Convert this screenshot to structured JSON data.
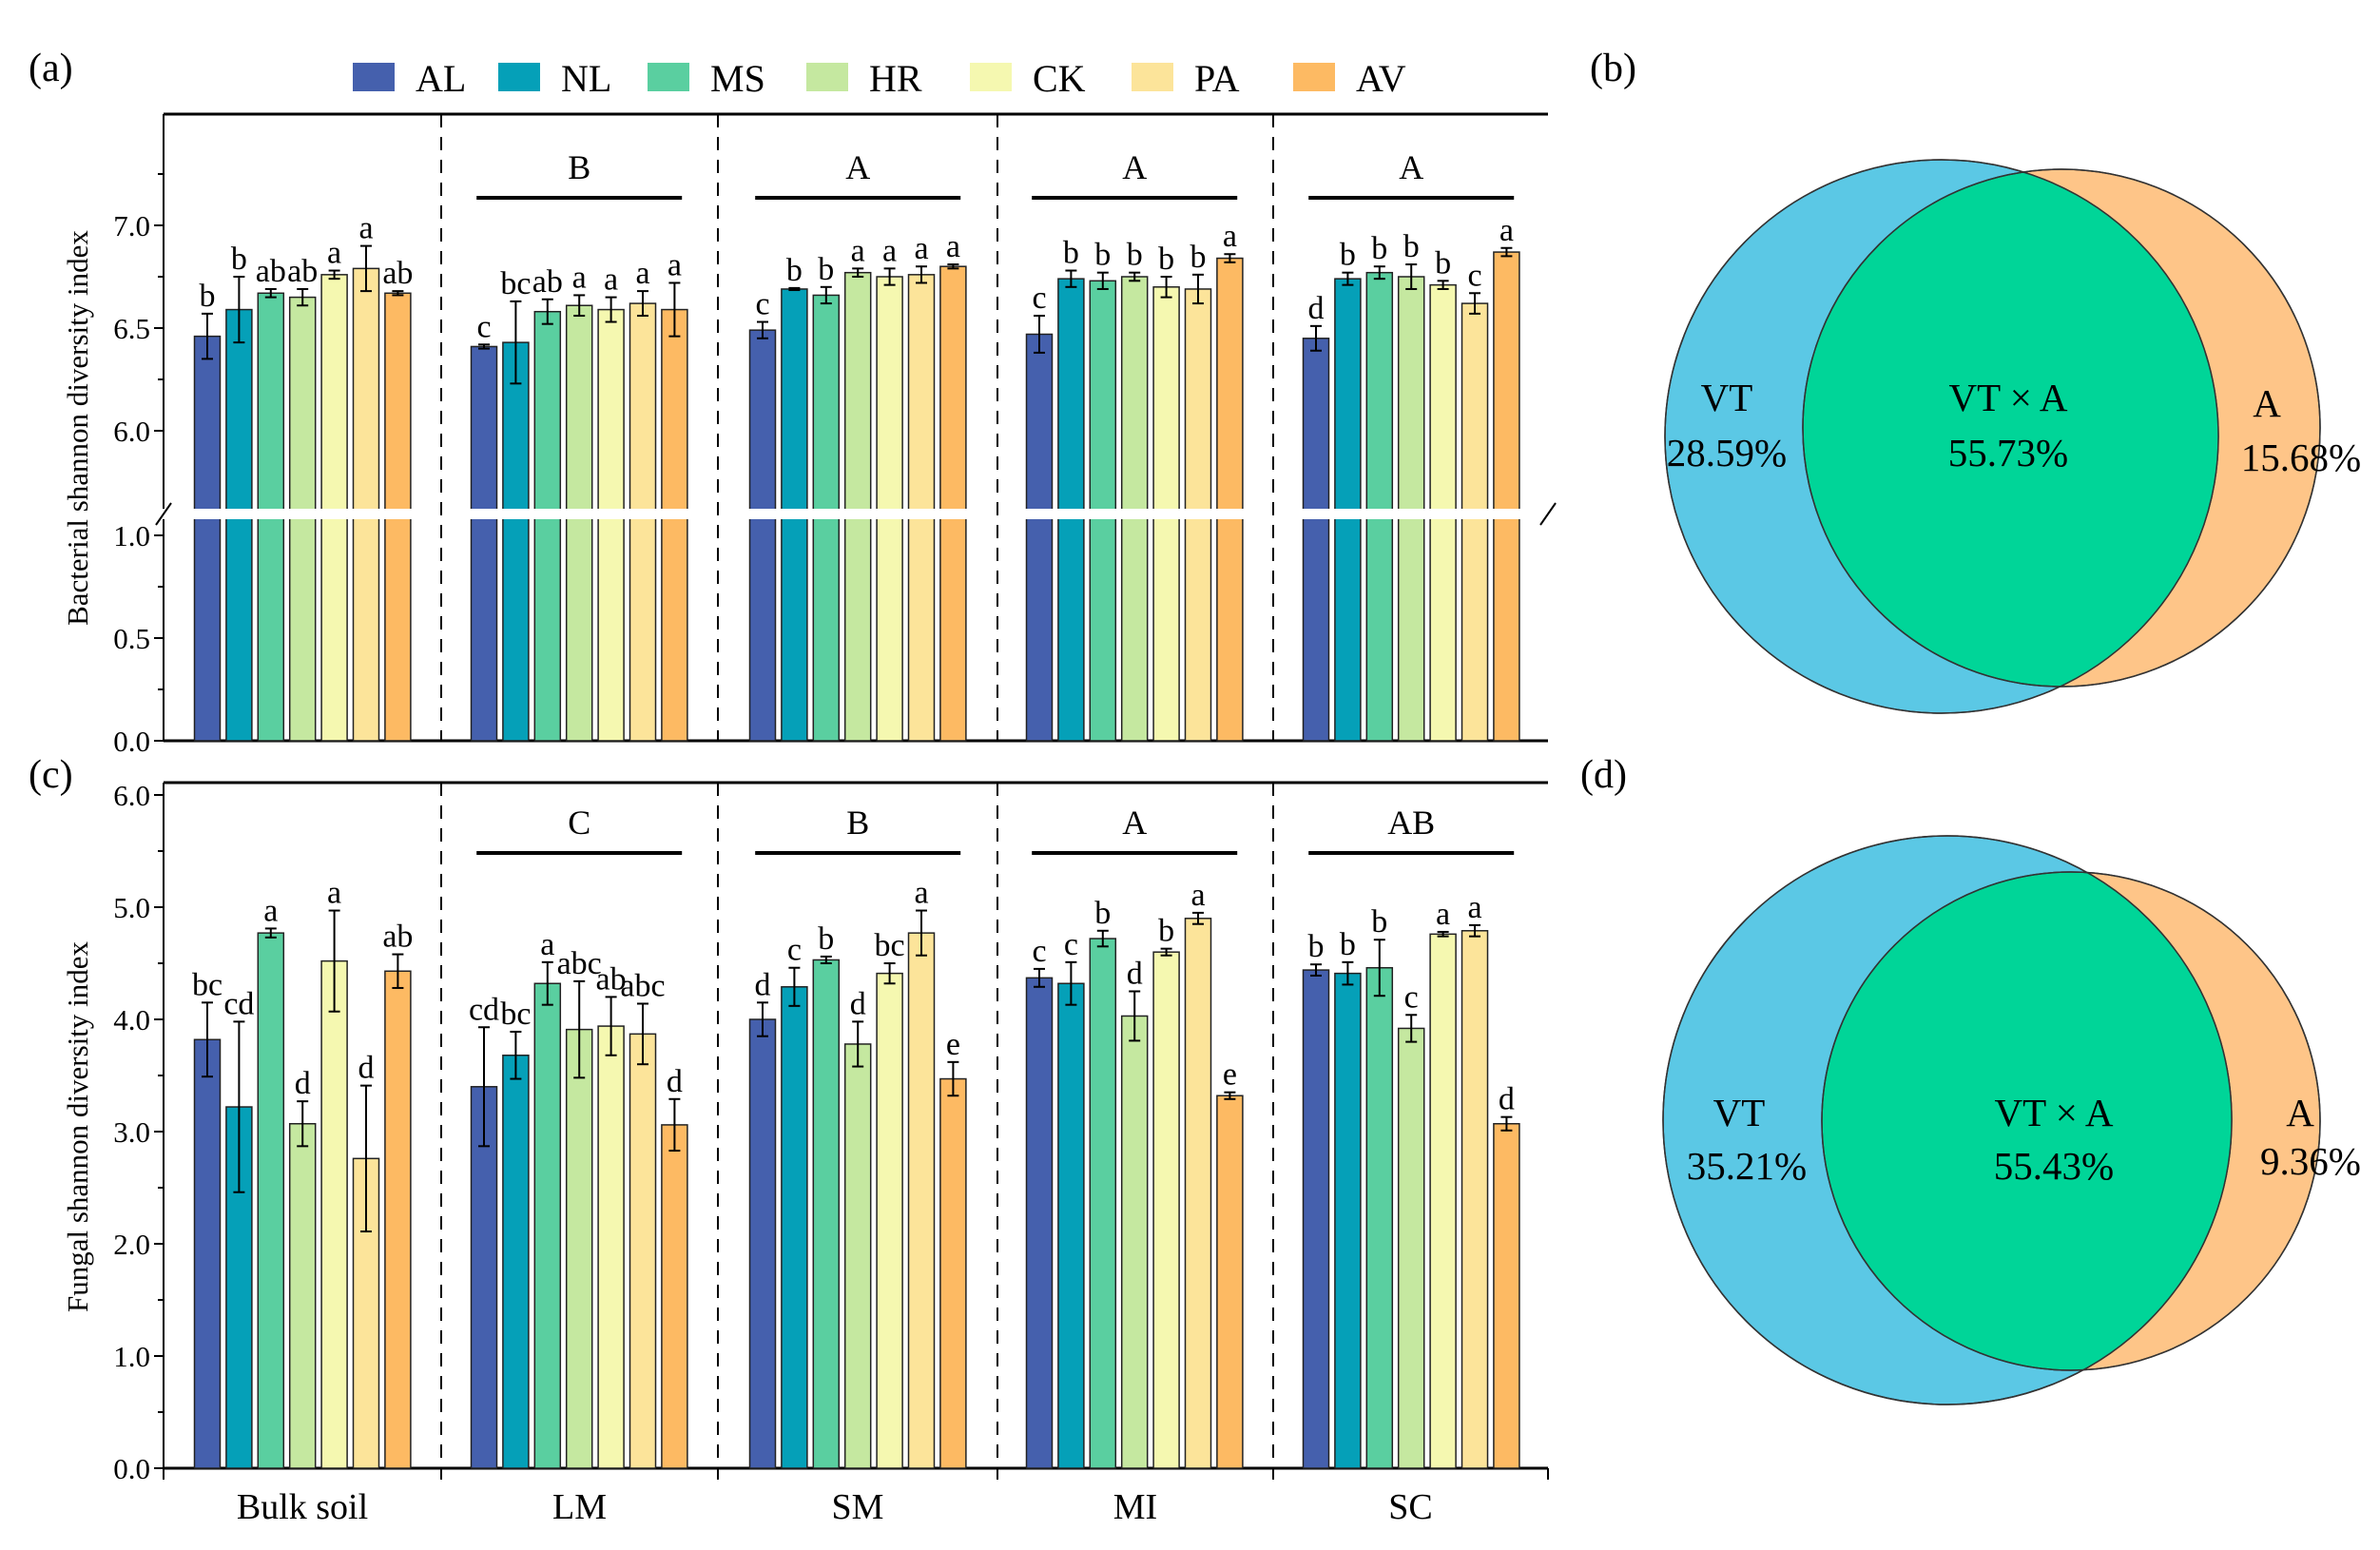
{
  "panels": {
    "a": "(a)",
    "b": "(b)",
    "c": "(c)",
    "d": "(d)"
  },
  "legend": [
    {
      "name": "AL",
      "color": "#4560AD"
    },
    {
      "name": "NL",
      "color": "#05A0B8"
    },
    {
      "name": "MS",
      "color": "#5ACFA0"
    },
    {
      "name": "HR",
      "color": "#C5E8A0"
    },
    {
      "name": "CK",
      "color": "#F5F8B0"
    },
    {
      "name": "PA",
      "color": "#FCE49A"
    },
    {
      "name": "AV",
      "color": "#FDBA63"
    }
  ],
  "chart_data": [
    {
      "type": "bar",
      "ylabel": "Bacterial shannon diversity index",
      "axis_break": {
        "lower": [
          0,
          1.08
        ],
        "upper": [
          5.62,
          7.54
        ]
      },
      "yticks_lower": [
        "0.0",
        "0.5",
        "1.0"
      ],
      "yticks_upper": [
        "6.0",
        "6.5",
        "7.0"
      ],
      "categories": [
        "Bulk soil",
        "LM",
        "SM",
        "MI",
        "SC"
      ],
      "group_letters": [
        "",
        "B",
        "A",
        "A",
        "A"
      ],
      "series_names": [
        "AL",
        "NL",
        "MS",
        "HR",
        "CK",
        "PA",
        "AV"
      ],
      "values": [
        [
          6.46,
          6.59,
          6.67,
          6.65,
          6.76,
          6.79,
          6.67
        ],
        [
          6.41,
          6.43,
          6.58,
          6.61,
          6.59,
          6.62,
          6.59
        ],
        [
          6.49,
          6.69,
          6.66,
          6.77,
          6.75,
          6.76,
          6.8
        ],
        [
          6.47,
          6.74,
          6.73,
          6.75,
          6.7,
          6.69,
          6.84
        ],
        [
          6.45,
          6.74,
          6.77,
          6.75,
          6.71,
          6.62,
          6.87
        ]
      ],
      "errors": [
        [
          0.11,
          0.16,
          0.02,
          0.04,
          0.02,
          0.11,
          0.01
        ],
        [
          0.01,
          0.2,
          0.06,
          0.05,
          0.06,
          0.06,
          0.13
        ],
        [
          0.04,
          0.005,
          0.04,
          0.02,
          0.04,
          0.04,
          0.01
        ],
        [
          0.09,
          0.04,
          0.04,
          0.02,
          0.05,
          0.07,
          0.02
        ],
        [
          0.06,
          0.03,
          0.03,
          0.06,
          0.02,
          0.05,
          0.02
        ]
      ],
      "letters": [
        [
          "b",
          "b",
          "ab",
          "ab",
          "a",
          "a",
          "ab"
        ],
        [
          "c",
          "bc",
          "ab",
          "a",
          "a",
          "a",
          "a"
        ],
        [
          "c",
          "b",
          "b",
          "a",
          "a",
          "a",
          "a"
        ],
        [
          "c",
          "b",
          "b",
          "b",
          "b",
          "b",
          "a"
        ],
        [
          "d",
          "b",
          "b",
          "b",
          "b",
          "c",
          "a"
        ]
      ]
    },
    {
      "type": "bar",
      "ylabel": "Fungal  shannon diversity index",
      "ylim": [
        0,
        6
      ],
      "yticks": [
        "0.0",
        "1.0",
        "2.0",
        "3.0",
        "4.0",
        "5.0",
        "6.0"
      ],
      "categories": [
        "Bulk soil",
        "LM",
        "SM",
        "MI",
        "SC"
      ],
      "group_letters": [
        "",
        "C",
        "B",
        "A",
        "AB"
      ],
      "series_names": [
        "AL",
        "NL",
        "MS",
        "HR",
        "CK",
        "PA",
        "AV"
      ],
      "values": [
        [
          3.82,
          3.22,
          4.77,
          3.07,
          4.52,
          2.76,
          4.43
        ],
        [
          3.4,
          3.68,
          4.32,
          3.91,
          3.94,
          3.87,
          3.06
        ],
        [
          4.0,
          4.29,
          4.53,
          3.78,
          4.41,
          4.77,
          3.47
        ],
        [
          4.37,
          4.32,
          4.72,
          4.03,
          4.6,
          4.9,
          3.32
        ],
        [
          4.44,
          4.41,
          4.46,
          3.92,
          4.76,
          4.79,
          3.07
        ]
      ],
      "errors": [
        [
          0.33,
          0.76,
          0.04,
          0.2,
          0.45,
          0.65,
          0.15
        ],
        [
          0.53,
          0.21,
          0.19,
          0.43,
          0.26,
          0.27,
          0.23
        ],
        [
          0.15,
          0.17,
          0.03,
          0.2,
          0.09,
          0.2,
          0.15
        ],
        [
          0.08,
          0.19,
          0.07,
          0.22,
          0.03,
          0.05,
          0.03
        ],
        [
          0.05,
          0.1,
          0.25,
          0.12,
          0.02,
          0.05,
          0.06
        ]
      ],
      "letters": [
        [
          "bc",
          "cd",
          "a",
          "d",
          "a",
          "d",
          "ab"
        ],
        [
          "cd",
          "bc",
          "a",
          "abc",
          "ab",
          "abc",
          "d"
        ],
        [
          "d",
          "c",
          "b",
          "d",
          "bc",
          "a",
          "e"
        ],
        [
          "c",
          "c",
          "b",
          "d",
          "b",
          "a",
          "e"
        ],
        [
          "b",
          "b",
          "b",
          "c",
          "a",
          "a",
          "d"
        ]
      ]
    },
    {
      "type": "venn",
      "colors": {
        "VT": "#5BC8E5",
        "A": "#FEC588",
        "overlap": "#00D598"
      },
      "sets": [
        {
          "label": "VT",
          "value": "28.59%"
        },
        {
          "label": "VT × A",
          "value": "55.73%"
        },
        {
          "label": "A",
          "value": "15.68%"
        }
      ]
    },
    {
      "type": "venn",
      "colors": {
        "VT": "#5BC8E5",
        "A": "#FEC588",
        "overlap": "#00D598"
      },
      "sets": [
        {
          "label": "VT",
          "value": "35.21%"
        },
        {
          "label": "VT × A",
          "value": "55.43%"
        },
        {
          "label": "A",
          "value": "9.36%"
        }
      ]
    }
  ]
}
